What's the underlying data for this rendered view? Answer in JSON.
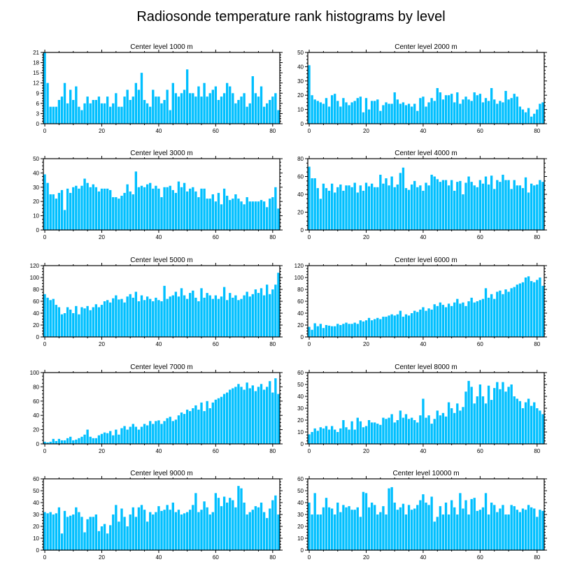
{
  "chart_data": {
    "type": "bar",
    "title": "Radiosonde temperature rank histograms by level",
    "bar_color": "#00bfff",
    "xticks": [
      "0",
      "20",
      "40",
      "60",
      "80"
    ],
    "xlim": [
      -0.5,
      82.5
    ],
    "panels": [
      {
        "title": "Center level 1000 m",
        "ylim": [
          0,
          21
        ],
        "yticks": [
          "0",
          "3",
          "6",
          "9",
          "12",
          "15",
          "18",
          "21"
        ],
        "values": [
          21,
          12,
          5,
          5,
          5,
          7,
          8,
          12,
          6,
          10,
          7,
          11,
          5,
          4,
          6,
          8,
          6,
          7,
          7,
          8,
          6,
          6,
          8,
          5,
          6,
          9,
          5,
          5,
          8,
          10,
          7,
          8,
          12,
          10,
          15,
          7,
          6,
          5,
          10,
          8,
          8,
          6,
          7,
          10,
          4,
          12,
          9,
          8,
          9,
          10,
          16,
          9,
          9,
          8,
          11,
          8,
          12,
          8,
          9,
          10,
          11,
          7,
          8,
          9,
          12,
          11,
          9,
          6,
          7,
          8,
          9,
          5,
          6,
          14,
          9,
          8,
          11,
          5,
          6,
          7,
          8,
          9,
          4
        ]
      },
      {
        "title": "Center level 2000 m",
        "ylim": [
          0,
          50
        ],
        "yticks": [
          "0",
          "10",
          "20",
          "30",
          "40",
          "50"
        ],
        "values": [
          41,
          20,
          17,
          16,
          15,
          14,
          18,
          12,
          20,
          21,
          16,
          12,
          18,
          15,
          13,
          15,
          16,
          18,
          19,
          8,
          18,
          10,
          16,
          16,
          17,
          9,
          13,
          15,
          14,
          14,
          22,
          17,
          14,
          15,
          13,
          14,
          12,
          14,
          9,
          18,
          19,
          12,
          15,
          18,
          16,
          25,
          22,
          17,
          20,
          20,
          21,
          15,
          22,
          14,
          17,
          19,
          17,
          16,
          22,
          20,
          21,
          15,
          18,
          16,
          25,
          17,
          14,
          16,
          15,
          23,
          17,
          18,
          21,
          19,
          12,
          10,
          8,
          11,
          5,
          7,
          10,
          14,
          15
        ]
      },
      {
        "title": "Center level 3000 m",
        "ylim": [
          0,
          50
        ],
        "yticks": [
          "0",
          "10",
          "20",
          "30",
          "40",
          "50"
        ],
        "values": [
          39,
          33,
          25,
          25,
          22,
          26,
          28,
          14,
          29,
          26,
          30,
          31,
          29,
          31,
          36,
          33,
          30,
          32,
          30,
          27,
          29,
          29,
          29,
          28,
          23,
          23,
          22,
          24,
          26,
          32,
          27,
          25,
          41,
          30,
          31,
          30,
          32,
          33,
          29,
          31,
          29,
          23,
          30,
          30,
          31,
          28,
          26,
          34,
          30,
          33,
          27,
          29,
          30,
          27,
          23,
          29,
          29,
          22,
          22,
          25,
          20,
          26,
          18,
          29,
          24,
          21,
          22,
          25,
          22,
          20,
          18,
          23,
          20,
          20,
          20,
          20,
          21,
          20,
          16,
          22,
          23,
          30,
          15
        ]
      },
      {
        "title": "Center level 4000 m",
        "ylim": [
          0,
          80
        ],
        "yticks": [
          "0",
          "20",
          "40",
          "60",
          "80"
        ],
        "values": [
          71,
          58,
          58,
          47,
          35,
          52,
          47,
          44,
          52,
          42,
          48,
          51,
          44,
          50,
          50,
          48,
          53,
          42,
          50,
          44,
          53,
          49,
          52,
          48,
          48,
          62,
          52,
          58,
          50,
          60,
          48,
          51,
          64,
          70,
          47,
          45,
          51,
          55,
          48,
          50,
          44,
          53,
          50,
          62,
          60,
          57,
          54,
          56,
          56,
          50,
          56,
          44,
          54,
          55,
          40,
          53,
          60,
          54,
          50,
          48,
          56,
          52,
          60,
          51,
          61,
          46,
          56,
          54,
          62,
          56,
          56,
          46,
          56,
          50,
          50,
          47,
          59,
          42,
          52,
          50,
          51,
          56,
          54
        ]
      },
      {
        "title": "Center level 5000 m",
        "ylim": [
          0,
          120
        ],
        "yticks": [
          "0",
          "20",
          "40",
          "60",
          "80",
          "100",
          "120"
        ],
        "values": [
          72,
          66,
          62,
          64,
          54,
          50,
          38,
          40,
          50,
          46,
          40,
          52,
          38,
          50,
          48,
          52,
          45,
          50,
          55,
          50,
          54,
          60,
          62,
          58,
          65,
          70,
          63,
          64,
          58,
          68,
          72,
          66,
          76,
          60,
          70,
          62,
          68,
          64,
          60,
          66,
          62,
          60,
          86,
          64,
          68,
          70,
          76,
          68,
          82,
          70,
          64,
          74,
          78,
          66,
          60,
          82,
          66,
          74,
          70,
          64,
          70,
          64,
          68,
          84,
          62,
          74,
          66,
          70,
          62,
          64,
          70,
          76,
          68,
          72,
          80,
          74,
          82,
          70,
          88,
          72,
          80,
          88,
          108
        ]
      },
      {
        "title": "Center level 6000 m",
        "ylim": [
          0,
          120
        ],
        "yticks": [
          "0",
          "20",
          "40",
          "60",
          "80",
          "100",
          "120"
        ],
        "values": [
          17,
          12,
          23,
          18,
          22,
          15,
          20,
          19,
          18,
          18,
          22,
          20,
          22,
          24,
          22,
          22,
          24,
          22,
          28,
          26,
          28,
          32,
          28,
          30,
          32,
          30,
          34,
          34,
          36,
          38,
          36,
          38,
          44,
          34,
          38,
          36,
          40,
          44,
          42,
          46,
          50,
          44,
          48,
          46,
          55,
          52,
          58,
          54,
          50,
          56,
          52,
          58,
          64,
          56,
          58,
          52,
          60,
          66,
          58,
          60,
          62,
          64,
          82,
          66,
          72,
          64,
          76,
          78,
          72,
          80,
          76,
          82,
          84,
          88,
          90,
          92,
          100,
          102,
          94,
          92,
          96,
          100,
          86
        ]
      },
      {
        "title": "Center level 7000 m",
        "ylim": [
          0,
          100
        ],
        "yticks": [
          "0",
          "20",
          "40",
          "60",
          "80",
          "100"
        ],
        "values": [
          3,
          2,
          3,
          7,
          4,
          7,
          5,
          5,
          8,
          10,
          5,
          6,
          8,
          10,
          13,
          20,
          10,
          8,
          8,
          12,
          14,
          16,
          15,
          18,
          12,
          20,
          13,
          22,
          25,
          20,
          24,
          28,
          24,
          20,
          24,
          28,
          26,
          32,
          28,
          32,
          33,
          28,
          32,
          36,
          38,
          32,
          34,
          40,
          44,
          42,
          48,
          46,
          50,
          54,
          48,
          58,
          46,
          60,
          50,
          58,
          62,
          64,
          66,
          70,
          72,
          76,
          78,
          80,
          84,
          80,
          76,
          86,
          78,
          82,
          74,
          80,
          84,
          76,
          80,
          88,
          72,
          92,
          70
        ]
      },
      {
        "title": "Center level 8000 m",
        "ylim": [
          0,
          60
        ],
        "yticks": [
          "0",
          "10",
          "20",
          "30",
          "40",
          "50",
          "60"
        ],
        "values": [
          8,
          10,
          13,
          11,
          14,
          13,
          15,
          12,
          15,
          12,
          10,
          13,
          20,
          14,
          12,
          19,
          12,
          22,
          19,
          14,
          15,
          20,
          18,
          18,
          17,
          16,
          22,
          21,
          22,
          25,
          18,
          20,
          28,
          22,
          25,
          21,
          22,
          20,
          18,
          24,
          38,
          22,
          24,
          17,
          21,
          28,
          24,
          26,
          23,
          35,
          30,
          26,
          34,
          28,
          31,
          44,
          53,
          48,
          34,
          40,
          50,
          40,
          34,
          49,
          37,
          47,
          52,
          46,
          52,
          44,
          48,
          50,
          40,
          38,
          36,
          30,
          35,
          38,
          32,
          35,
          30,
          28,
          25
        ]
      },
      {
        "title": "Center level 9000 m",
        "ylim": [
          0,
          60
        ],
        "yticks": [
          "0",
          "10",
          "20",
          "30",
          "40",
          "50",
          "60"
        ],
        "values": [
          32,
          31,
          32,
          30,
          31,
          36,
          14,
          33,
          28,
          29,
          30,
          36,
          32,
          28,
          15,
          26,
          28,
          28,
          30,
          16,
          20,
          22,
          14,
          21,
          30,
          38,
          24,
          35,
          28,
          20,
          30,
          36,
          28,
          36,
          38,
          34,
          24,
          32,
          30,
          32,
          37,
          33,
          34,
          38,
          34,
          40,
          32,
          34,
          30,
          31,
          32,
          34,
          38,
          48,
          32,
          34,
          41,
          36,
          30,
          32,
          48,
          44,
          37,
          45,
          40,
          44,
          42,
          36,
          54,
          52,
          40,
          30,
          32,
          34,
          37,
          36,
          40,
          32,
          27,
          35,
          42,
          46,
          30
        ]
      },
      {
        "title": "Center level 10000 m",
        "ylim": [
          0,
          60
        ],
        "yticks": [
          "0",
          "10",
          "20",
          "30",
          "40",
          "50",
          "60"
        ],
        "values": [
          40,
          30,
          48,
          30,
          30,
          36,
          44,
          36,
          35,
          30,
          40,
          32,
          38,
          36,
          37,
          34,
          34,
          36,
          28,
          49,
          48,
          36,
          40,
          38,
          30,
          32,
          37,
          30,
          52,
          53,
          40,
          34,
          36,
          39,
          30,
          38,
          34,
          35,
          38,
          42,
          47,
          40,
          38,
          45,
          24,
          28,
          37,
          30,
          40,
          30,
          42,
          36,
          30,
          48,
          35,
          42,
          30,
          43,
          44,
          33,
          34,
          36,
          48,
          30,
          40,
          38,
          32,
          35,
          38,
          30,
          30,
          38,
          37,
          34,
          32,
          35,
          34,
          38,
          36,
          35,
          28,
          34,
          33
        ]
      }
    ]
  }
}
